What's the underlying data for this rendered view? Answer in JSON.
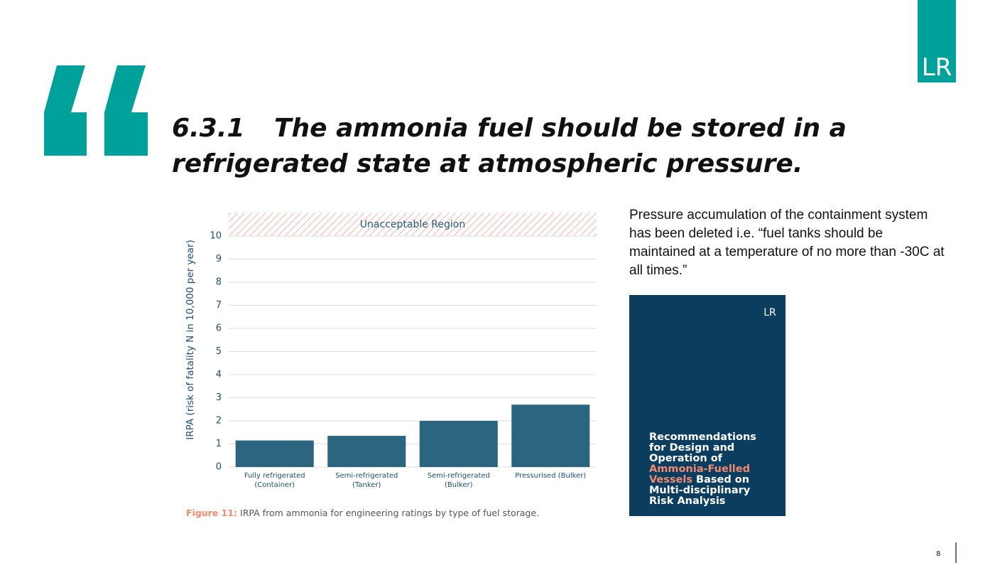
{
  "logo": "LR",
  "heading": {
    "number": "6.3.1",
    "lines": [
      "The ammonia fuel should be stored in a",
      "refrigerated state at atmospheric pressure."
    ]
  },
  "note": "Pressure accumulation of the containment system has been deleted i.e. “fuel tanks should be maintained at a temperature of no more than -30C at all times.”",
  "cover": {
    "logo": "LR",
    "title": [
      "Recommendations",
      "for Design and",
      "Operation of",
      "Ammonia-Fuelled",
      "Vessels",
      "Based on",
      "Multi-disciplinary",
      "Risk Analysis"
    ]
  },
  "caption": {
    "label": "Figure 11:",
    "text": "IRPA from ammonia for engineering ratings by type of fuel storage."
  },
  "page_number": "8",
  "chart_data": {
    "type": "bar",
    "y_label": "IRPA (risk of fatality N in 10,000 per year)",
    "categories": [
      "Fully refrigerated\n(Container)",
      "Semi-refrigerated\n(Tanker)",
      "Semi-refrigerated\n(Bulker)",
      "Pressurised (Bulker)"
    ],
    "values": [
      1.15,
      1.35,
      2.0,
      2.7
    ],
    "color": "#2b6580",
    "ylim": [
      0,
      11
    ],
    "yticks": [
      0,
      1,
      2,
      3,
      4,
      5,
      6,
      7,
      8,
      9,
      10
    ],
    "grid": true,
    "region": {
      "label": "Unacceptable Region",
      "range": [
        10,
        11
      ]
    }
  }
}
